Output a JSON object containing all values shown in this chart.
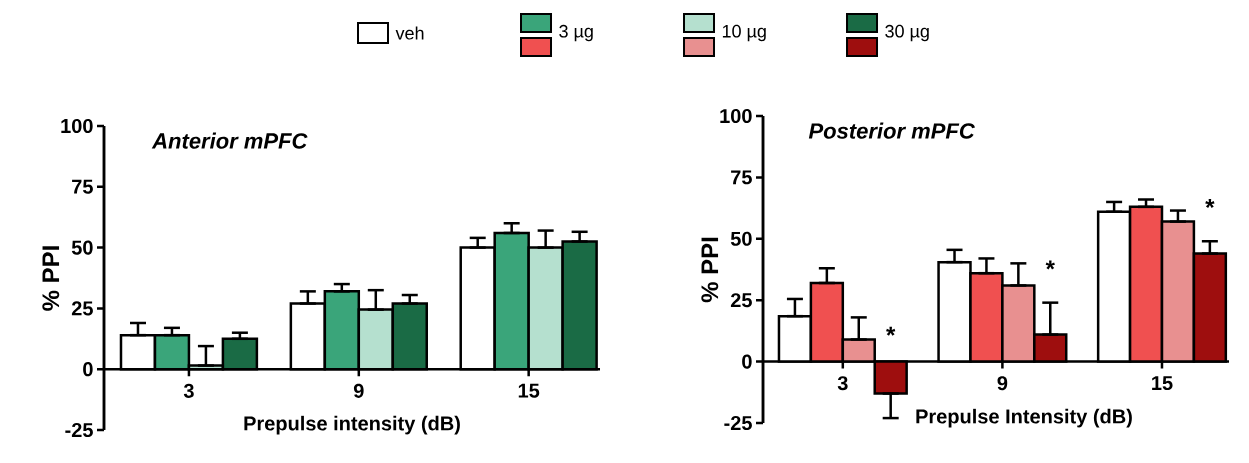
{
  "chart_data": [
    {
      "type": "bar",
      "title": "Anterior mPFC",
      "xlabel": "Prepulse intensity  (dB)",
      "ylabel": "% PPI",
      "categories": [
        "3",
        "9",
        "15"
      ],
      "ylim": [
        -25,
        100
      ],
      "yticks": [
        -25,
        0,
        25,
        50,
        75,
        100
      ],
      "legend": "top",
      "grid": false,
      "series": [
        {
          "name": "veh",
          "color": "#ffffff",
          "values": [
            14,
            27,
            50
          ],
          "errors": [
            5,
            5,
            4
          ]
        },
        {
          "name": "3 µg",
          "color": "#3aa57a",
          "values": [
            14,
            32,
            56
          ],
          "errors": [
            3,
            3,
            4
          ]
        },
        {
          "name": "10 µg",
          "color": "#b5e0cf",
          "values": [
            1.5,
            24.5,
            50
          ],
          "errors": [
            8,
            8,
            7
          ]
        },
        {
          "name": "30 µg",
          "color": "#1a6b45",
          "values": [
            12.5,
            27,
            52.5
          ],
          "errors": [
            2.5,
            3.5,
            4
          ]
        }
      ]
    },
    {
      "type": "bar",
      "title": "Posterior mPFC",
      "xlabel": "Prepulse  Intensity  (dB)",
      "ylabel": "% PPI",
      "categories": [
        "3",
        "9",
        "15"
      ],
      "ylim": [
        -25,
        100
      ],
      "yticks": [
        -25,
        0,
        25,
        50,
        75,
        100
      ],
      "grid": false,
      "series": [
        {
          "color": "#ffffff",
          "values": [
            18.5,
            40.5,
            61
          ],
          "errors": [
            7,
            5,
            4
          ]
        },
        {
          "color": "#f05050",
          "values": [
            32,
            36,
            63
          ],
          "errors": [
            6,
            6,
            3
          ]
        },
        {
          "color": "#e89090",
          "values": [
            9,
            31,
            57
          ],
          "errors": [
            9,
            9,
            4.5
          ]
        },
        {
          "color": "#9e0e0e",
          "values": [
            -13,
            11,
            44
          ],
          "errors": [
            10,
            13,
            5
          ]
        }
      ],
      "annotations": [
        {
          "text": "*",
          "x": "3",
          "y": 6
        },
        {
          "text": "*",
          "x": "9",
          "y": 33
        },
        {
          "text": "*",
          "x": "15",
          "y": 58
        }
      ]
    }
  ]
}
